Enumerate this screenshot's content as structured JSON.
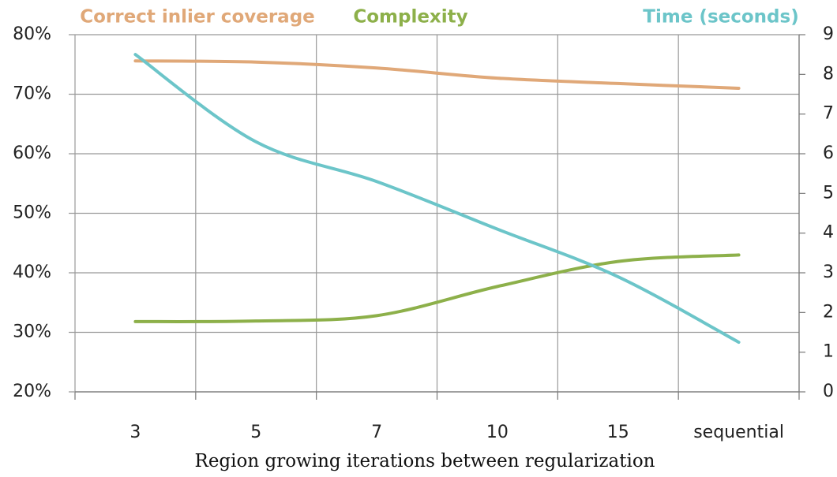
{
  "chart_data": {
    "type": "line",
    "x_label": "Region growing iterations between regularization",
    "categories": [
      "3",
      "5",
      "7",
      "10",
      "15",
      "sequential"
    ],
    "series": [
      {
        "name": "Correct inlier coverage",
        "color": "#e0a878",
        "values": [
          75.6,
          75.4,
          74.4,
          72.7,
          71.8,
          71.0
        ]
      },
      {
        "name": "Complexity",
        "color": "#8db04a",
        "values": [
          31.8,
          31.9,
          32.8,
          37.7,
          41.9,
          43.0
        ]
      },
      {
        "name": "Time (seconds)",
        "color": "#6cc5c9",
        "axis": "y2",
        "values": [
          8.5,
          6.3,
          5.3,
          4.1,
          2.9,
          1.25
        ]
      }
    ],
    "ylim": [
      20,
      80
    ],
    "yticks": [
      {
        "value": 20,
        "label": "20%"
      },
      {
        "value": 30,
        "label": "30%"
      },
      {
        "value": 40,
        "label": "40%"
      },
      {
        "value": 50,
        "label": "50%"
      },
      {
        "value": 60,
        "label": "60%"
      },
      {
        "value": 70,
        "label": "70%"
      },
      {
        "value": 80,
        "label": "80%"
      }
    ],
    "y2lim": [
      0,
      9
    ],
    "y2ticks": [
      0,
      1,
      2,
      3,
      4,
      5,
      6,
      7,
      8,
      9
    ],
    "grid": true
  }
}
